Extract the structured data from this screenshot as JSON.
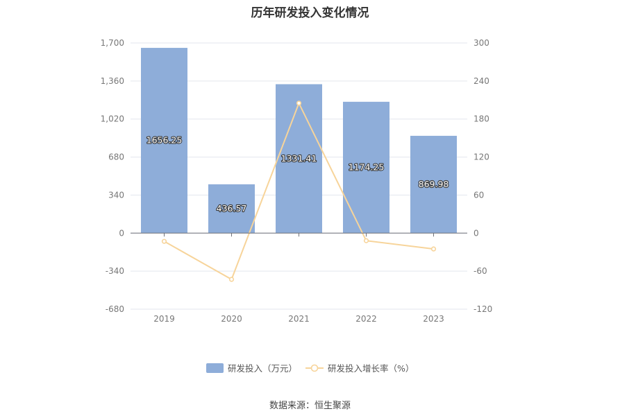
{
  "chart_data": {
    "type": "bar",
    "title": "历年研发投入变化情况",
    "categories": [
      "2019",
      "2020",
      "2021",
      "2022",
      "2023"
    ],
    "series": [
      {
        "name": "研发投入（万元）",
        "type": "bar",
        "axis": "left",
        "values": [
          1656.25,
          436.57,
          1331.41,
          1174.25,
          869.98
        ],
        "color": "#8eadd9"
      },
      {
        "name": "研发投入增长率（%）",
        "type": "line",
        "axis": "right",
        "values": [
          -13,
          -73,
          205,
          -12,
          -25
        ],
        "color": "#f7d49a"
      }
    ],
    "y_left": {
      "ylim": [
        -680,
        1700
      ],
      "ticks": [
        "1,700",
        "1,360",
        "1,020",
        "680",
        "340",
        "0",
        "-340",
        "-680"
      ]
    },
    "y_right": {
      "ylim": [
        -120,
        300
      ],
      "ticks": [
        "300",
        "240",
        "180",
        "120",
        "60",
        "0",
        "-60",
        "-120"
      ]
    },
    "grid": true,
    "legend_position": "bottom"
  },
  "source": "数据来源：恒生聚源"
}
